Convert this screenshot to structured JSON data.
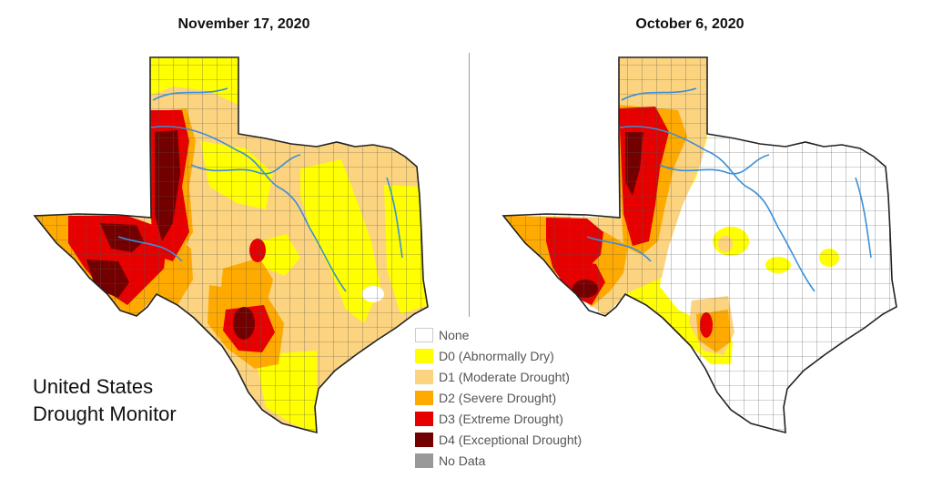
{
  "panels": [
    {
      "date": "November 17, 2020"
    },
    {
      "date": "October 6, 2020"
    }
  ],
  "brand": {
    "line1": "United States",
    "line2": "Drought Monitor"
  },
  "legend": [
    {
      "label": "None",
      "color": "#ffffff"
    },
    {
      "label": "D0 (Abnormally Dry)",
      "color": "#ffff00"
    },
    {
      "label": "D1 (Moderate Drought)",
      "color": "#fcd37f"
    },
    {
      "label": "D2 (Severe Drought)",
      "color": "#ffaa00"
    },
    {
      "label": "D3 (Extreme Drought)",
      "color": "#e60000"
    },
    {
      "label": "D4 (Exceptional Drought)",
      "color": "#730000"
    },
    {
      "label": "No Data",
      "color": "#999999"
    }
  ],
  "colors": {
    "river": "#3a8fd9",
    "border": "#222222",
    "county": "#555555"
  }
}
